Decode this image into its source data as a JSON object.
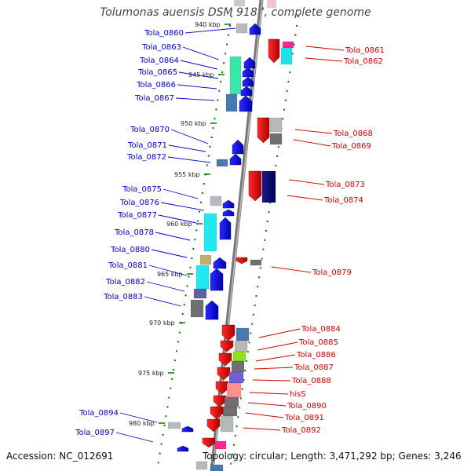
{
  "title": "Tolumonas auensis DSM 9187, complete genome",
  "footer": {
    "accession": "Accession: NC_012691",
    "summary": "Topology: circular; Length: 3,471,292 bp; Genes: 3,246"
  },
  "scale_labels": [
    "940 kbp",
    "945 kbp",
    "950 kbp",
    "955 kbp",
    "960 kbp",
    "965 kbp",
    "970 kbp",
    "975 kbp",
    "980 kbp"
  ],
  "colors": {
    "forward_strand": "#0000cc",
    "reverse_strand": "#cc0000",
    "backbone": "#8a8a8a",
    "ticks": "#007700"
  },
  "left_labels": [
    "Tola_0860",
    "Tola_0863",
    "Tola_0864",
    "Tola_0865",
    "Tola_0866",
    "Tola_0867",
    "Tola_0870",
    "Tola_0871",
    "Tola_0872",
    "Tola_0875",
    "Tola_0876",
    "Tola_0877",
    "Tola_0878",
    "Tola_0880",
    "Tola_0881",
    "Tola_0882",
    "Tola_0883",
    "Tola_0894",
    "Tola_0897"
  ],
  "right_labels": [
    "Tola_0861",
    "Tola_0862",
    "Tola_0868",
    "Tola_0869",
    "Tola_0873",
    "Tola_0874",
    "Tola_0879",
    "Tola_0884",
    "Tola_0885",
    "Tola_0886",
    "Tola_0887",
    "Tola_0888",
    "hisS",
    "Tola_0890",
    "Tola_0891",
    "Tola_0892"
  ]
}
